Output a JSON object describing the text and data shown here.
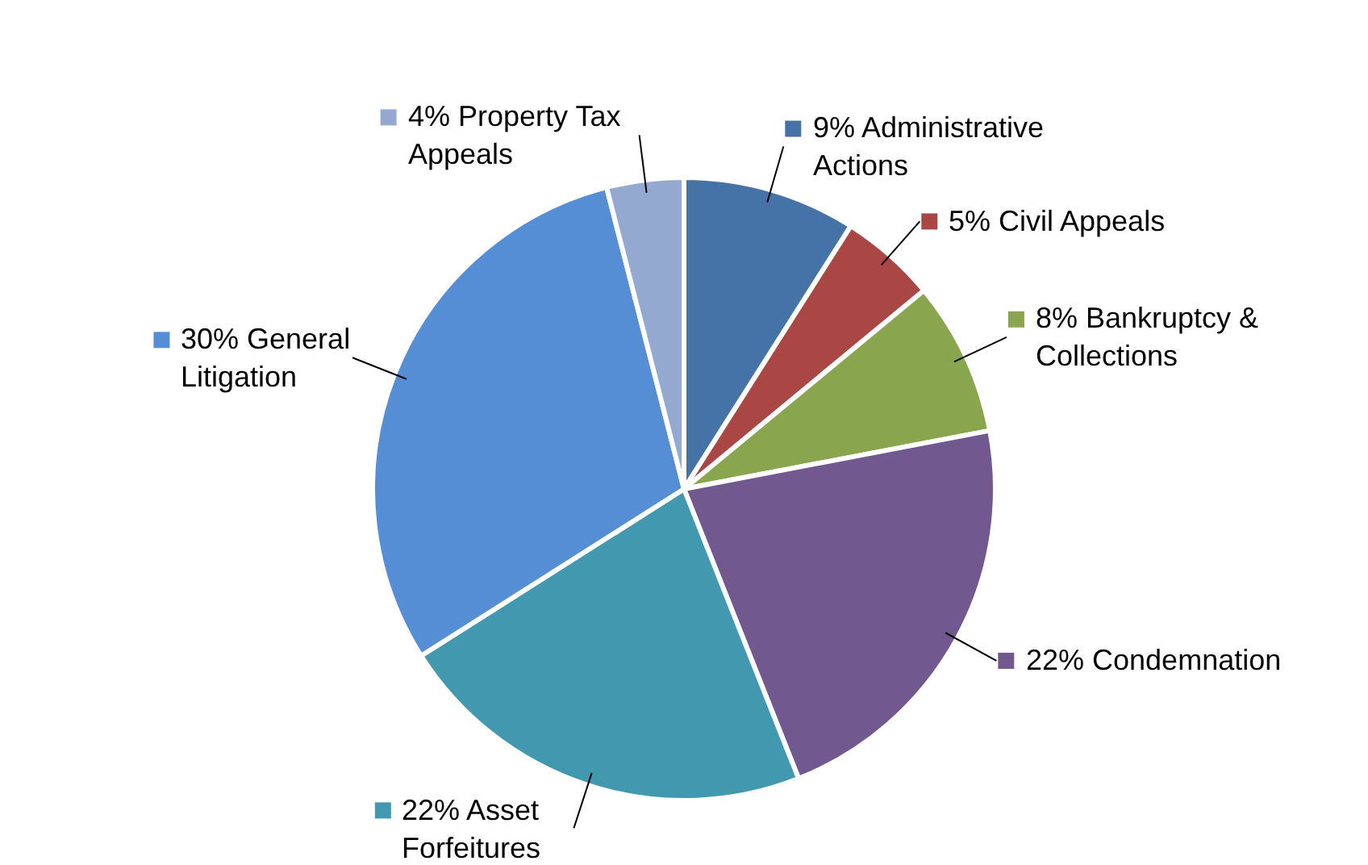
{
  "chart_data": {
    "type": "pie",
    "categories": [
      "Administrative Actions",
      "Civil Appeals",
      "Bankruptcy & Collections",
      "Condemnation",
      "Asset Forfeitures",
      "General Litigation",
      "Property Tax Appeals"
    ],
    "values": [
      9,
      5,
      8,
      22,
      22,
      30,
      4
    ],
    "value_labels": [
      "9%",
      "5%",
      "8%",
      "22%",
      "22%",
      "30%",
      "4%"
    ],
    "colors": [
      "#4572a7",
      "#aa4643",
      "#89a54e",
      "#71588f",
      "#4198af",
      "#558ed5",
      "#93a9cf"
    ],
    "legend": "top right"
  }
}
